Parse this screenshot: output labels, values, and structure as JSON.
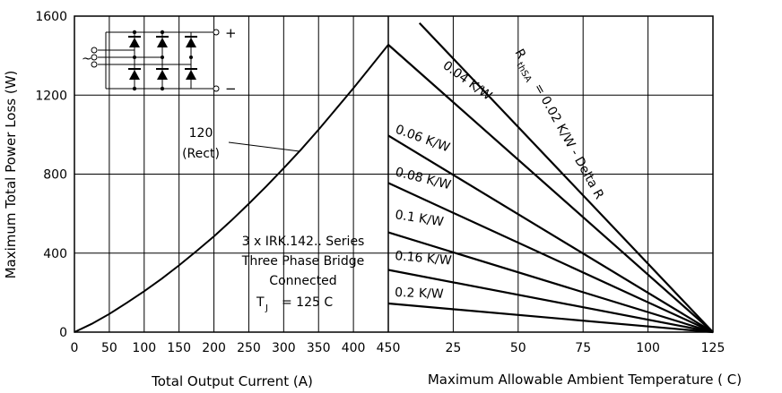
{
  "chart_data": [
    {
      "type": "line",
      "title": "",
      "xlabel": "Total Output Current (A)",
      "ylabel": "Maximum Total Power Loss (W)",
      "xlim": [
        0,
        450
      ],
      "ylim": [
        0,
        1600
      ],
      "x_ticks": [
        "0",
        "50",
        "100",
        "150",
        "200",
        "250",
        "300",
        "350",
        "400",
        "450"
      ],
      "y_ticks": [
        "0",
        "400",
        "800",
        "1200",
        "1600"
      ],
      "grid": true,
      "series": [
        {
          "name": "120 (Rect)",
          "x": [
            0,
            25,
            50,
            75,
            100,
            125,
            150,
            175,
            200,
            225,
            250,
            275,
            300,
            325,
            350,
            375,
            400,
            425,
            450
          ],
          "y": [
            0,
            42,
            92,
            148,
            207,
            270,
            338,
            410,
            485,
            565,
            650,
            738,
            830,
            925,
            1025,
            1130,
            1235,
            1345,
            1455
          ]
        }
      ]
    },
    {
      "type": "line",
      "title": "",
      "xlabel": "Maximum Allowable Ambient Temperature ( C)",
      "ylabel": "",
      "xlim": [
        0,
        125
      ],
      "ylim": [
        0,
        1600
      ],
      "x_ticks": [
        "25",
        "50",
        "75",
        "100",
        "125"
      ],
      "grid": true,
      "series": [
        {
          "name": "0.02 K/W - Delta R",
          "x": [
            12,
            125
          ],
          "y": [
            1565,
            0
          ]
        },
        {
          "name": "0.04 K/W",
          "x": [
            0,
            125
          ],
          "y": [
            1455,
            0
          ]
        },
        {
          "name": "0.06 K/W",
          "x": [
            0,
            125
          ],
          "y": [
            995,
            0
          ]
        },
        {
          "name": "0.08 K/W",
          "x": [
            0,
            125
          ],
          "y": [
            755,
            0
          ]
        },
        {
          "name": "0.1 K/W",
          "x": [
            0,
            125
          ],
          "y": [
            505,
            0
          ]
        },
        {
          "name": "0.16 K/W",
          "x": [
            0,
            125
          ],
          "y": [
            315,
            0
          ]
        },
        {
          "name": "0.2 K/W",
          "x": [
            0,
            125
          ],
          "y": [
            145,
            0
          ]
        }
      ]
    }
  ],
  "annotations": {
    "curve_label_1": "120",
    "curve_label_2": "(Rect)",
    "series_label_1": "3 x IRK.142.. Series",
    "series_label_2": "Three Phase Bridge",
    "series_label_3": "Connected",
    "tj_symbol": "T",
    "tj_sub": "J",
    "tj_value": "= 125 C",
    "rth_symbol": "R",
    "rth_sub": "thSA",
    "rth_value": "= 0.02 K/W - Delta R",
    "rth_labels": [
      "0.04 K/W",
      "0.06 K/W",
      "0.08 K/W",
      "0.1 K/W",
      "0.16 K/W",
      "0.2 K/W"
    ],
    "bridge_plus": "+",
    "bridge_minus": "−",
    "bridge_ac": "~"
  }
}
